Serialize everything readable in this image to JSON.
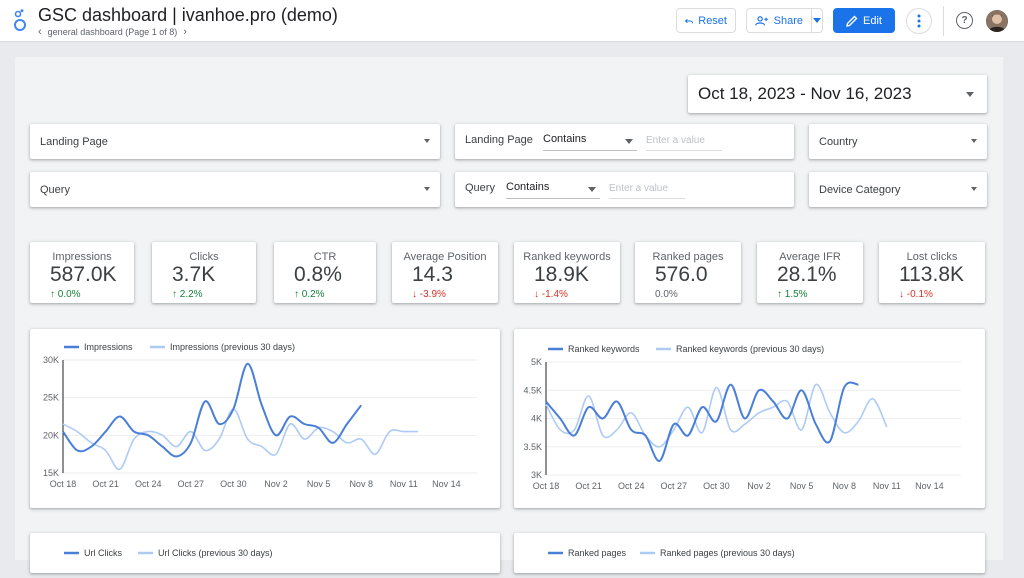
{
  "header": {
    "title": "GSC dashboard | ivanhoe.pro (demo)",
    "page_indicator": "general dashboard (Page 1 of 8)",
    "reset_label": "Reset",
    "share_label": "Share",
    "edit_label": "Edit"
  },
  "colors": {
    "accent": "#1a73e8",
    "series_current": "#4a7fd8",
    "series_previous": "#aecbf5",
    "positive": "#188038",
    "negative": "#d93025"
  },
  "date_range": "Oct 18, 2023 - Nov 16, 2023",
  "filters": {
    "landing_page_dropdown": "Landing Page",
    "query_dropdown": "Query",
    "landing_page_filter": {
      "label": "Landing Page",
      "operator": "Contains",
      "placeholder": "Enter a value"
    },
    "query_filter": {
      "label": "Query",
      "operator": "Contains",
      "placeholder": "Enter a value"
    },
    "country_dropdown": "Country",
    "device_dropdown": "Device Category"
  },
  "kpis": [
    {
      "label": "Impressions",
      "value": "587.0K",
      "delta": "0.0%",
      "trend": "up"
    },
    {
      "label": "Clicks",
      "value": "3.7K",
      "delta": "2.2%",
      "trend": "up"
    },
    {
      "label": "CTR",
      "value": "0.8%",
      "delta": "0.2%",
      "trend": "up"
    },
    {
      "label": "Average Position",
      "value": "14.3",
      "delta": "-3.9%",
      "trend": "down"
    },
    {
      "label": "Ranked keywords",
      "value": "18.9K",
      "delta": "-1.4%",
      "trend": "down"
    },
    {
      "label": "Ranked pages",
      "value": "576.0",
      "delta": "0.0%",
      "trend": "flat"
    },
    {
      "label": "Average IFR",
      "value": "28.1%",
      "delta": "1.5%",
      "trend": "up"
    },
    {
      "label": "Lost clicks",
      "value": "113.8K",
      "delta": "-0.1%",
      "trend": "down"
    }
  ],
  "chart_data": [
    {
      "type": "line",
      "x": [
        "Oct 18",
        "Oct 19",
        "Oct 20",
        "Oct 21",
        "Oct 22",
        "Oct 23",
        "Oct 24",
        "Oct 25",
        "Oct 26",
        "Oct 27",
        "Oct 28",
        "Oct 29",
        "Oct 30",
        "Oct 31",
        "Nov 1",
        "Nov 2",
        "Nov 3",
        "Nov 4",
        "Nov 5",
        "Nov 6",
        "Nov 7",
        "Nov 8",
        "Nov 9",
        "Nov 10",
        "Nov 11",
        "Nov 12",
        "Nov 13",
        "Nov 14",
        "Nov 15",
        "Nov 16"
      ],
      "tick_labels": [
        "Oct 18",
        "Oct 21",
        "Oct 24",
        "Oct 27",
        "Oct 30",
        "Nov 2",
        "Nov 5",
        "Nov 8",
        "Nov 11",
        "Nov 14"
      ],
      "series": [
        {
          "name": "Impressions",
          "values": [
            20500,
            18000,
            18500,
            20500,
            22500,
            20500,
            20000,
            18500,
            17200,
            19000,
            24500,
            21500,
            23500,
            29500,
            24000,
            20000,
            22500,
            21500,
            21000,
            19000,
            21500,
            24000,
            null,
            null,
            null,
            null,
            null,
            null,
            null,
            null
          ]
        },
        {
          "name": "Impressions (previous 30 days)",
          "values": [
            21500,
            20500,
            19000,
            18000,
            15500,
            19500,
            20500,
            20000,
            18500,
            20500,
            18000,
            19500,
            23500,
            19500,
            18500,
            17500,
            21500,
            19500,
            21000,
            20500,
            19000,
            19500,
            17500,
            20500,
            20500,
            20500,
            null,
            null,
            null,
            null
          ]
        }
      ],
      "ylim": [
        15000,
        30000
      ],
      "yticks": [
        "15K",
        "20K",
        "25K",
        "30K"
      ],
      "grid": true,
      "legend": "top-left"
    },
    {
      "type": "line",
      "x": [
        "Oct 18",
        "Oct 19",
        "Oct 20",
        "Oct 21",
        "Oct 22",
        "Oct 23",
        "Oct 24",
        "Oct 25",
        "Oct 26",
        "Oct 27",
        "Oct 28",
        "Oct 29",
        "Oct 30",
        "Oct 31",
        "Nov 1",
        "Nov 2",
        "Nov 3",
        "Nov 4",
        "Nov 5",
        "Nov 6",
        "Nov 7",
        "Nov 8",
        "Nov 9",
        "Nov 10",
        "Nov 11",
        "Nov 12",
        "Nov 13",
        "Nov 14",
        "Nov 15",
        "Nov 16"
      ],
      "tick_labels": [
        "Oct 18",
        "Oct 21",
        "Oct 24",
        "Oct 27",
        "Oct 30",
        "Nov 2",
        "Nov 5",
        "Nov 8",
        "Nov 11",
        "Nov 14"
      ],
      "series": [
        {
          "name": "Ranked keywords",
          "values": [
            4300,
            4000,
            3700,
            4200,
            4000,
            4300,
            3800,
            3700,
            3250,
            3900,
            3700,
            4200,
            3950,
            4600,
            4000,
            4500,
            4300,
            4000,
            4500,
            3900,
            3600,
            4550,
            4600,
            null,
            null,
            null,
            null,
            null,
            null,
            null
          ]
        },
        {
          "name": "Ranked keywords (previous 30 days)",
          "values": [
            4250,
            3800,
            3800,
            4400,
            3700,
            3800,
            4100,
            3700,
            3500,
            3800,
            4200,
            3750,
            4550,
            3800,
            3900,
            4100,
            4200,
            4300,
            3800,
            4600,
            4100,
            3750,
            3950,
            4350,
            3850,
            null,
            null,
            null,
            null,
            null
          ]
        }
      ],
      "ylim": [
        3000,
        5000
      ],
      "yticks": [
        "3K",
        "3.5K",
        "4K",
        "4.5K",
        "5K"
      ],
      "grid": true,
      "legend": "top-left"
    }
  ],
  "bottom_cards": [
    {
      "legend_current": "Url Clicks",
      "legend_previous": "Url Clicks (previous 30 days)"
    },
    {
      "legend_current": "Ranked pages",
      "legend_previous": "Ranked pages (previous 30 days)"
    }
  ]
}
